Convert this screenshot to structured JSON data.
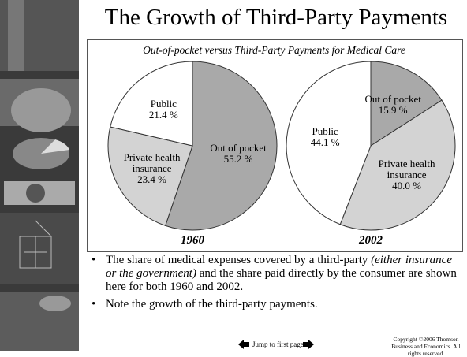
{
  "title": "The Growth of Third-Party Payments",
  "figure_title": "Out-of-pocket versus Third-Party Payments for Medical Care",
  "chart_data": [
    {
      "type": "pie",
      "title": "1960",
      "categories": [
        "Out of pocket",
        "Private health insurance",
        "Public"
      ],
      "values": [
        55.2,
        23.4,
        21.4
      ],
      "value_labels": [
        "55.2 %",
        "23.4 %",
        "21.4 %"
      ],
      "colors": [
        "#a9a9a9",
        "#d3d3d3",
        "#ffffff"
      ]
    },
    {
      "type": "pie",
      "title": "2002",
      "categories": [
        "Out of pocket",
        "Private health insurance",
        "Public"
      ],
      "values": [
        15.9,
        40.0,
        44.1
      ],
      "value_labels": [
        "15.9 %",
        "40.0 %",
        "44.1 %"
      ],
      "colors": [
        "#a9a9a9",
        "#d3d3d3",
        "#ffffff"
      ]
    }
  ],
  "bullets": [
    [
      "The share of medical expenses covered by a third-party",
      "(either insurance or the government)",
      "and the share paid directly by the consumer are shown here for both 1960 and 2002."
    ],
    [
      "Note the growth of the third-party payments."
    ]
  ],
  "footer": {
    "link": "Jump to first page",
    "copyright": "Copyright ©2006 Thomson Business and Economics. All rights reserved."
  }
}
